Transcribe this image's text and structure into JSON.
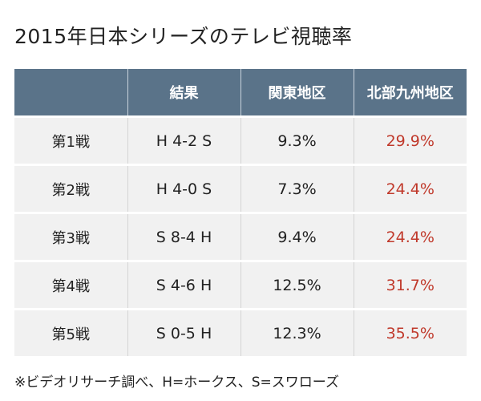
{
  "title": "2015年日本シリーズのテレビ視聴率",
  "colors": {
    "header_bg": "#5a7389",
    "header_text": "#ffffff",
    "row_bg": "#f1f1f1",
    "highlight_text": "#c0392b"
  },
  "table": {
    "headers": [
      "",
      "結果",
      "関東地区",
      "北部九州地区"
    ],
    "rows": [
      {
        "game": "第1戦",
        "result": "H 4-2 S",
        "kanto": "9.3%",
        "kyushu": "29.9%"
      },
      {
        "game": "第2戦",
        "result": "H 4-0 S",
        "kanto": "7.3%",
        "kyushu": "24.4%"
      },
      {
        "game": "第3戦",
        "result": "S 8-4 H",
        "kanto": "9.4%",
        "kyushu": "24.4%"
      },
      {
        "game": "第4戦",
        "result": "S 4-6 H",
        "kanto": "12.5%",
        "kyushu": "31.7%"
      },
      {
        "game": "第5戦",
        "result": "S 0-5 H",
        "kanto": "12.3%",
        "kyushu": "35.5%"
      }
    ]
  },
  "footnote": "※ビデオリサーチ調べ、H=ホークス、S=スワローズ"
}
